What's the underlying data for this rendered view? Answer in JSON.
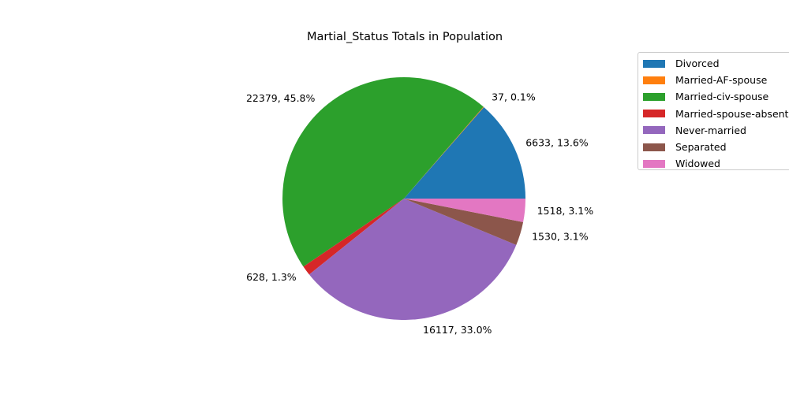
{
  "chart_data": {
    "type": "pie",
    "title": "Martial_Status Totals in Population",
    "categories": [
      " Divorced",
      " Married-AF-spouse",
      " Married-civ-spouse",
      " Married-spouse-absent",
      " Never-married",
      " Separated",
      " Widowed"
    ],
    "values": [
      6633,
      37,
      22379,
      628,
      16117,
      1530,
      1518
    ],
    "labels": [
      "6633, 13.6%",
      "37, 0.1%",
      "22379, 45.8%",
      "628, 1.3%",
      "16117, 33.0%",
      "1530, 3.1%",
      "1518, 3.1%"
    ],
    "colors": [
      "#1f77b4",
      "#ff7f0e",
      "#2ca02c",
      "#d62728",
      "#9467bd",
      "#8c564b",
      "#e377c2"
    ],
    "start_angle_deg": 0,
    "direction": "counterclockwise",
    "legend_position": "upper-right-outside"
  }
}
